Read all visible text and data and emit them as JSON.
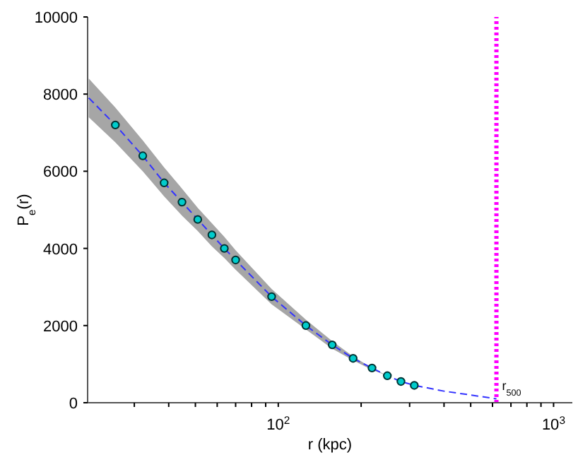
{
  "chart_data": {
    "type": "line",
    "xlabel": "r (kpc)",
    "ylabel": "P$_{e}$(r)",
    "log": "x",
    "xlim": [
      20.3,
      1170
    ],
    "ylim": [
      0,
      10000
    ],
    "xticks": [
      {
        "value": 30,
        "label": null
      },
      {
        "value": 40,
        "label": null
      },
      {
        "value": 50,
        "label": null
      },
      {
        "value": 60,
        "label": null
      },
      {
        "value": 70,
        "label": null
      },
      {
        "value": 80,
        "label": null
      },
      {
        "value": 90,
        "label": null
      },
      {
        "value": 100,
        "label": "10$^{2}$"
      },
      {
        "value": 200,
        "label": null
      },
      {
        "value": 300,
        "label": null
      },
      {
        "value": 400,
        "label": null
      },
      {
        "value": 500,
        "label": null
      },
      {
        "value": 600,
        "label": null
      },
      {
        "value": 700,
        "label": null
      },
      {
        "value": 800,
        "label": null
      },
      {
        "value": 900,
        "label": null
      },
      {
        "value": 1000,
        "label": "10$^{3}$"
      }
    ],
    "yticks": [
      0,
      2000,
      4000,
      6000,
      8000,
      10000
    ],
    "grid": false,
    "legend": false,
    "series": [
      {
        "type": "line",
        "color": "#3333ff",
        "line_style": "dashed",
        "marker": "none",
        "x": [
          20.5,
          25.6,
          32.2,
          38.5,
          44.7,
          51,
          57.4,
          63.7,
          70,
          94.6,
          126,
          157,
          187,
          219,
          249,
          279,
          312,
          400,
          500,
          620
        ],
        "values": [
          7900,
          7200,
          6400,
          5700,
          5200,
          4750,
          4350,
          4000,
          3700,
          2750,
          2000,
          1500,
          1150,
          900,
          700,
          550,
          450,
          300,
          200,
          100
        ],
        "lower": [
          7400,
          6750,
          6000,
          5350,
          4850,
          4450,
          4050,
          3750,
          3450,
          2550,
          1900,
          1400,
          1100,
          850,
          700,
          550,
          450,
          null,
          null,
          null
        ],
        "upper": [
          8400,
          7650,
          6800,
          6100,
          5550,
          5050,
          4650,
          4300,
          3950,
          2950,
          2150,
          1600,
          1200,
          900,
          700,
          550,
          450,
          null,
          null,
          null
        ]
      },
      {
        "type": "scatter",
        "color": "#00cccc",
        "marker": "circle",
        "x": [
          25.6,
          32.2,
          38.5,
          44.7,
          51,
          57.4,
          63.7,
          70,
          94.6,
          126,
          157,
          187,
          219,
          249,
          279,
          312
        ],
        "values": [
          7200,
          6400,
          5700,
          5200,
          4750,
          4350,
          4000,
          3700,
          2750,
          2000,
          1500,
          1150,
          900,
          700,
          550,
          450
        ]
      }
    ],
    "ref_lines": [
      {
        "axis": "x",
        "value": 620,
        "label": "r$_{500}$",
        "color": "#ff00ff",
        "line_style": "dotted"
      }
    ]
  }
}
